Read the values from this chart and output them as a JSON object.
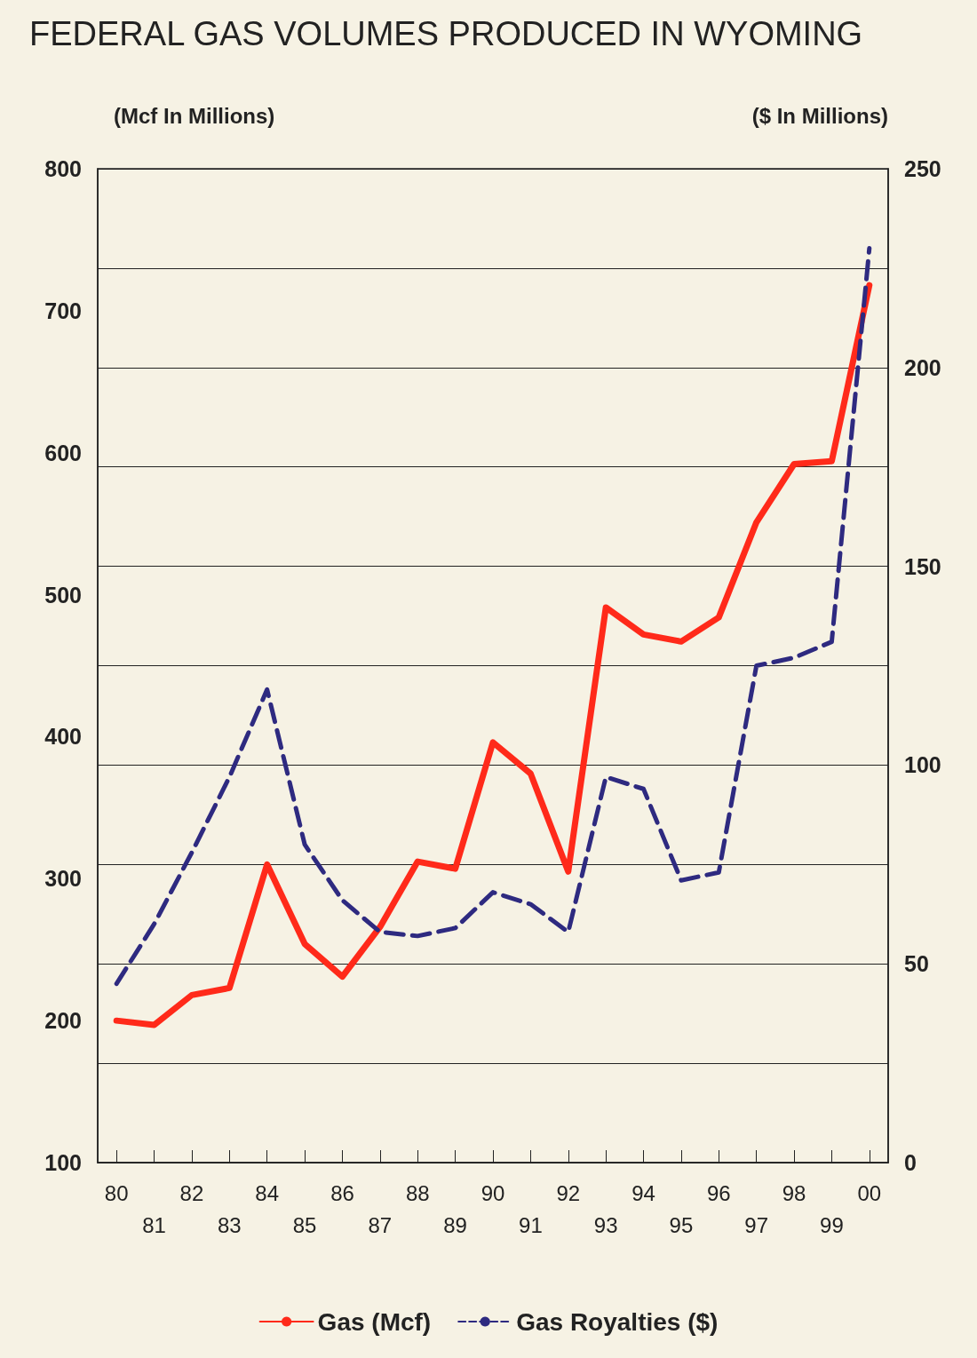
{
  "chart_data": {
    "type": "line",
    "title": "FEDERAL GAS VOLUMES PRODUCED IN WYOMING",
    "ylabel": "(Mcf In Millions)",
    "y2label": "($ In Millions)",
    "categories": [
      "80",
      "81",
      "82",
      "83",
      "84",
      "85",
      "86",
      "87",
      "88",
      "89",
      "90",
      "91",
      "92",
      "93",
      "94",
      "95",
      "96",
      "97",
      "98",
      "99",
      "00"
    ],
    "series": [
      {
        "name": "Gas (Mcf)",
        "color": "#ff2a1a",
        "line_style": "solid",
        "values": [
          200,
          197,
          218,
          223,
          310,
          254,
          231,
          266,
          312,
          307,
          396,
          374,
          305,
          491,
          472,
          467,
          484,
          551,
          592,
          594,
          718
        ]
      },
      {
        "name": "Gas Royalties ($)",
        "color": "#2e2a80",
        "line_style": "dashed",
        "axis": "y2",
        "values": [
          45,
          60,
          78,
          97,
          119,
          80,
          66,
          58,
          57,
          59,
          68,
          65,
          58,
          97,
          94,
          71,
          73,
          125,
          127,
          131,
          230
        ]
      }
    ],
    "ylim": [
      100,
      800
    ],
    "yticks": [
      100,
      200,
      300,
      400,
      500,
      600,
      700,
      800
    ],
    "y2lim": [
      0,
      250
    ],
    "y2ticks": [
      0,
      {
        "value": 25,
        "label": null
      },
      50,
      {
        "value": 75,
        "label": null
      },
      100,
      {
        "value": 125,
        "label": null
      },
      150,
      {
        "value": 175,
        "label": null
      },
      200,
      {
        "value": 225,
        "label": null
      },
      250
    ],
    "grid": "y2",
    "legend": "bottom",
    "marker": "none"
  }
}
